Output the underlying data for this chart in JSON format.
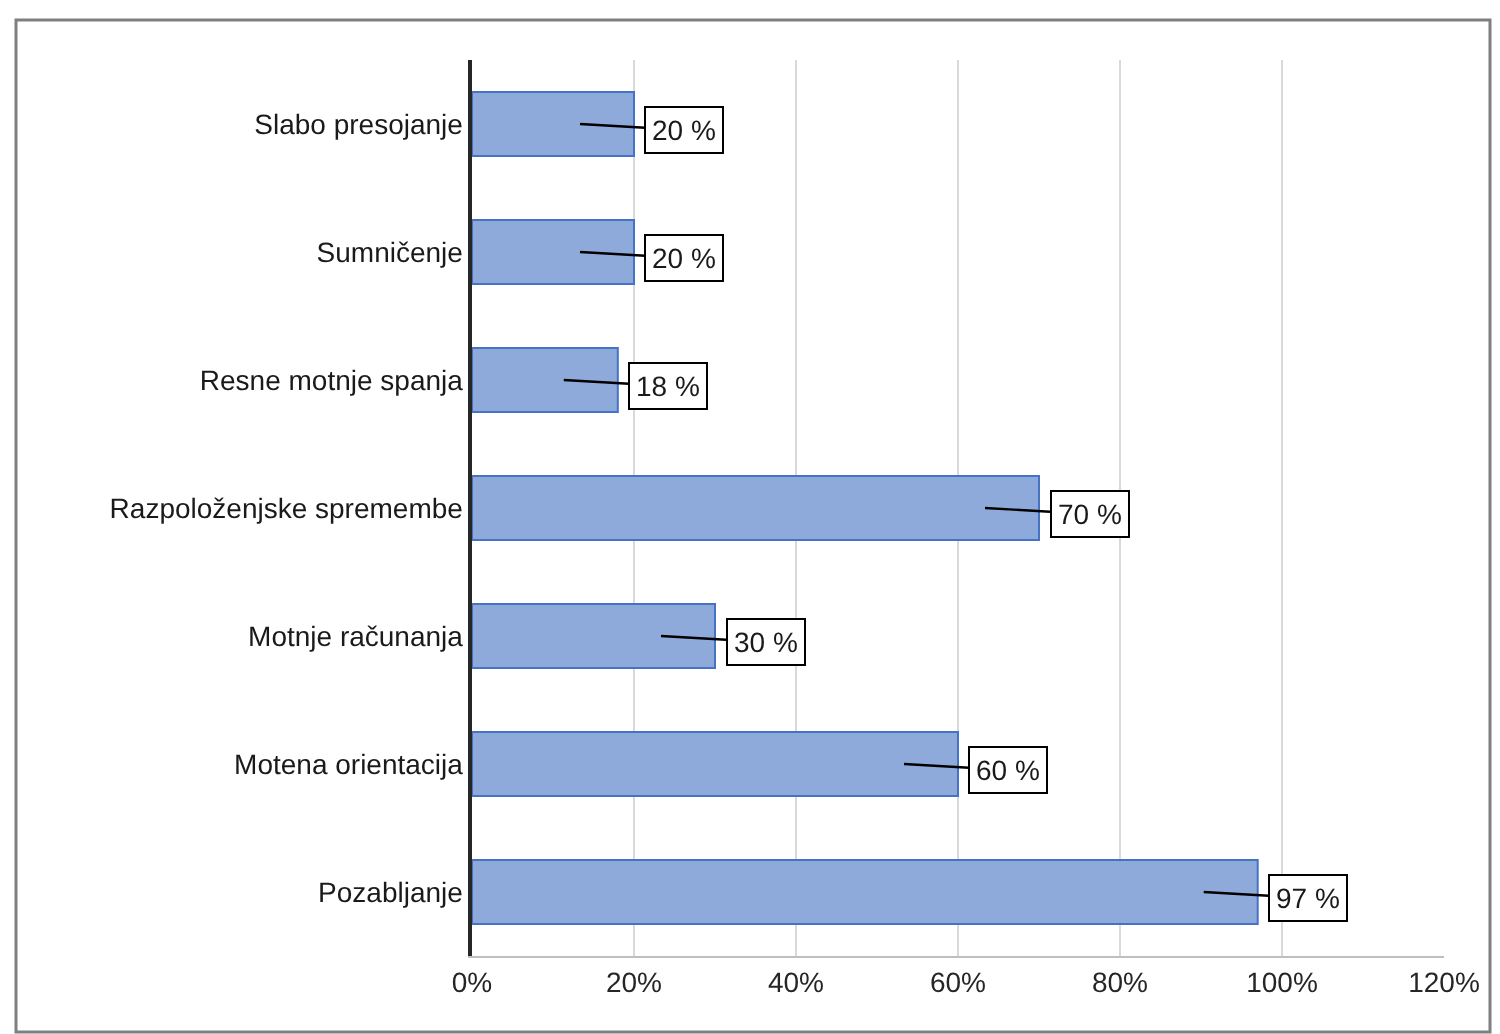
{
  "chart_data": {
    "type": "bar",
    "orientation": "horizontal",
    "categories": [
      "Slabo presojanje",
      "Sumničenje",
      "Resne motnje spanja",
      "Razpoloženjske spremembe",
      "Motnje računanja",
      "Motena orientacija",
      "Pozabljanje"
    ],
    "values": [
      20,
      20,
      18,
      70,
      30,
      60,
      97
    ],
    "value_labels": [
      "20 %",
      "20 %",
      "18 %",
      "70 %",
      "30 %",
      "60 %",
      "97 %"
    ],
    "color": "#8eaadb",
    "xlim": [
      0,
      120
    ],
    "xticks": [
      {
        "value": 0,
        "label": "0%"
      },
      {
        "value": 20,
        "label": "20%"
      },
      {
        "value": 40,
        "label": "40%"
      },
      {
        "value": 60,
        "label": "60%"
      },
      {
        "value": 80,
        "label": "80%"
      },
      {
        "value": 100,
        "label": "100%"
      },
      {
        "value": 120,
        "label": "120%"
      }
    ],
    "grid": "x"
  }
}
